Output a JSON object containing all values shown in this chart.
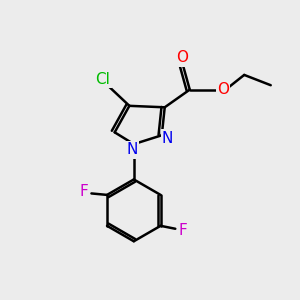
{
  "background_color": "#ececec",
  "bond_color": "#000000",
  "bond_width": 1.8,
  "figsize": [
    3.0,
    3.0
  ],
  "dpi": 100,
  "xlim": [
    0,
    10
  ],
  "ylim": [
    0,
    10
  ],
  "colors": {
    "Cl": "#00bb00",
    "O": "#ff0000",
    "N": "#0000ee",
    "F": "#cc00cc",
    "C": "#000000"
  }
}
